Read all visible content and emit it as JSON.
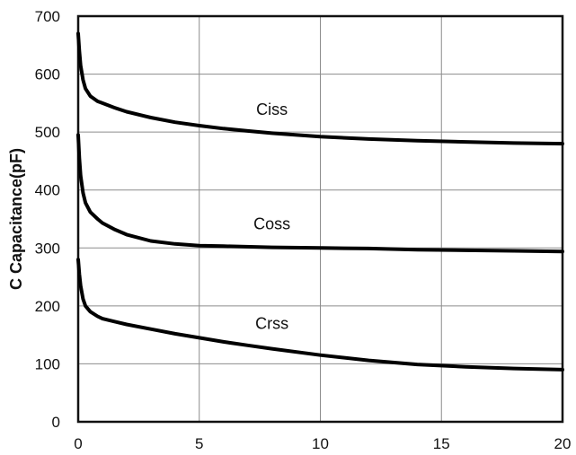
{
  "chart_data": {
    "type": "line",
    "title": "",
    "xlabel": "",
    "ylabel": "C Capacitance(pF)",
    "xlim": [
      0,
      20
    ],
    "ylim": [
      0,
      700
    ],
    "x_ticks": [
      0,
      5,
      10,
      15,
      20
    ],
    "y_ticks": [
      0,
      100,
      200,
      300,
      400,
      500,
      600,
      700
    ],
    "grid": true,
    "series": [
      {
        "name": "Ciss",
        "label_at": [
          8,
          530
        ],
        "x": [
          0,
          0.05,
          0.1,
          0.2,
          0.3,
          0.5,
          0.8,
          1,
          1.5,
          2,
          3,
          4,
          5,
          6,
          7,
          8,
          10,
          12,
          14,
          16,
          18,
          20
        ],
        "values": [
          670,
          640,
          615,
          590,
          575,
          562,
          553,
          550,
          542,
          535,
          525,
          517,
          511,
          506,
          502,
          498,
          492,
          488,
          485,
          483,
          481,
          480
        ]
      },
      {
        "name": "Coss",
        "label_at": [
          8,
          332
        ],
        "x": [
          0,
          0.05,
          0.1,
          0.2,
          0.3,
          0.5,
          0.8,
          1,
          1.5,
          2,
          3,
          4,
          5,
          6,
          8,
          10,
          12,
          14,
          16,
          18,
          20
        ],
        "values": [
          495,
          455,
          425,
          395,
          378,
          362,
          350,
          343,
          332,
          323,
          312,
          307,
          304,
          303,
          301,
          300,
          299,
          297,
          296,
          295,
          294
        ]
      },
      {
        "name": "Crss",
        "label_at": [
          8,
          160
        ],
        "x": [
          0,
          0.05,
          0.1,
          0.2,
          0.3,
          0.5,
          0.8,
          1,
          1.5,
          2,
          3,
          4,
          5,
          6,
          7,
          8,
          10,
          12,
          14,
          16,
          18,
          20
        ],
        "values": [
          280,
          255,
          235,
          212,
          200,
          190,
          182,
          178,
          173,
          168,
          160,
          152,
          145,
          138,
          132,
          126,
          115,
          106,
          99,
          95,
          92,
          90
        ]
      }
    ]
  }
}
